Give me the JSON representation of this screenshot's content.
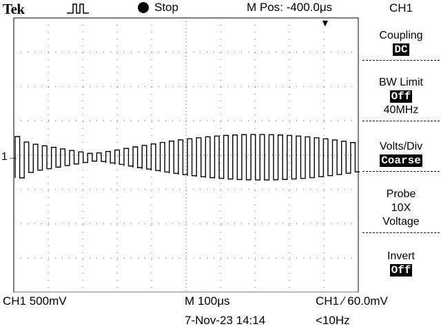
{
  "header": {
    "brand": "Tek",
    "acq_state": "Stop",
    "horizontal_position": "M Pos: -400.0μs"
  },
  "channel_marker": "1→",
  "menu": {
    "title": "CH1",
    "items": [
      {
        "label": "Coupling",
        "value": "DC"
      },
      {
        "label": "BW Limit",
        "value": "Off",
        "extra": "40MHz"
      },
      {
        "label": "Volts/Div",
        "value": "Coarse"
      },
      {
        "label": "Probe",
        "line2": "10X",
        "line3": "Voltage"
      },
      {
        "label": "Invert",
        "value": "Off"
      }
    ]
  },
  "status": {
    "ch1_scale": "CH1  500mV",
    "timebase": "M 100μs",
    "trigger": "CH1 ∕ 60.0mV",
    "date_time": "7-Nov-23 14:14",
    "freq": "<10Hz"
  }
}
